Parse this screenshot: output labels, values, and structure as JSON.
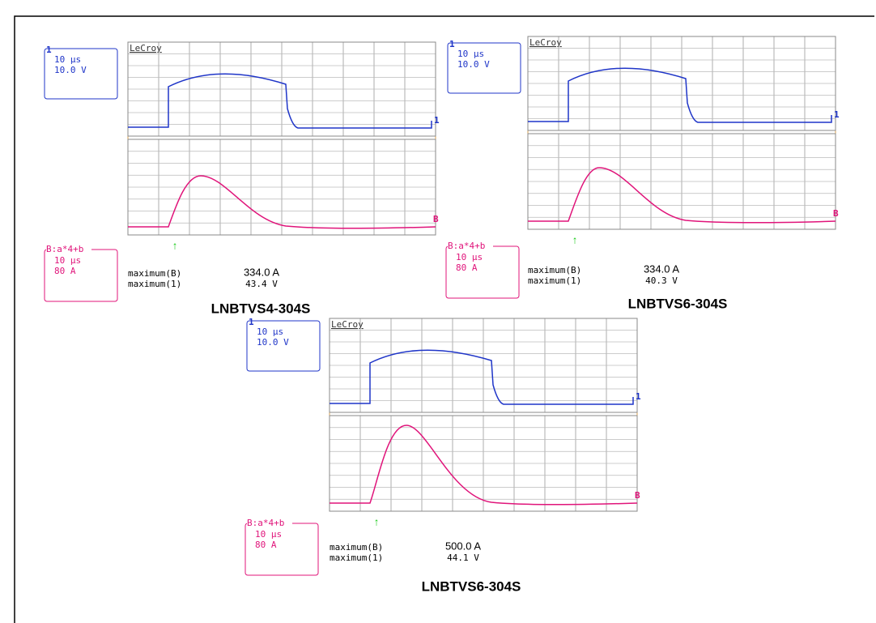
{
  "panels": [
    {
      "ch1_marker": "1",
      "ch1_time": "10 μs",
      "ch1_volt": "10.0 V",
      "brand": "LeCroy",
      "math_label": "B:a*4+b",
      "math_time": "10 μs",
      "math_amp": "80 A",
      "max_b_label": "maximum(B)",
      "max_b": "334.0 A",
      "max_1_label": "maximum(1)",
      "max_1": "43.4 V",
      "trace1_tag": "1",
      "traceb_tag": "B",
      "trigger": "↑",
      "label": "LNBTVS4-304S"
    },
    {
      "ch1_marker": "1",
      "ch1_time": "10 μs",
      "ch1_volt": "10.0 V",
      "brand": "LeCroy",
      "math_label": "B:a*4+b",
      "math_time": "10 μs",
      "math_amp": "80 A",
      "max_b_label": "maximum(B)",
      "max_b": "334.0 A",
      "max_1_label": "maximum(1)",
      "max_1": "40.3 V",
      "trace1_tag": "1",
      "traceb_tag": "B",
      "trigger": "↑",
      "label": "LNBTVS6-304S"
    },
    {
      "ch1_marker": "1",
      "ch1_time": "10 μs",
      "ch1_volt": "10.0 V",
      "brand": "LeCroy",
      "math_label": "B:a*4+b",
      "math_time": "10 μs",
      "math_amp": "80 A",
      "max_b_label": "maximum(B)",
      "max_b": "500.0 A",
      "max_1_label": "maximum(1)",
      "max_1": "44.1 V",
      "trace1_tag": "1",
      "traceb_tag": "B",
      "trigger": "↑",
      "label": "LNBTVS6-304S"
    }
  ]
}
